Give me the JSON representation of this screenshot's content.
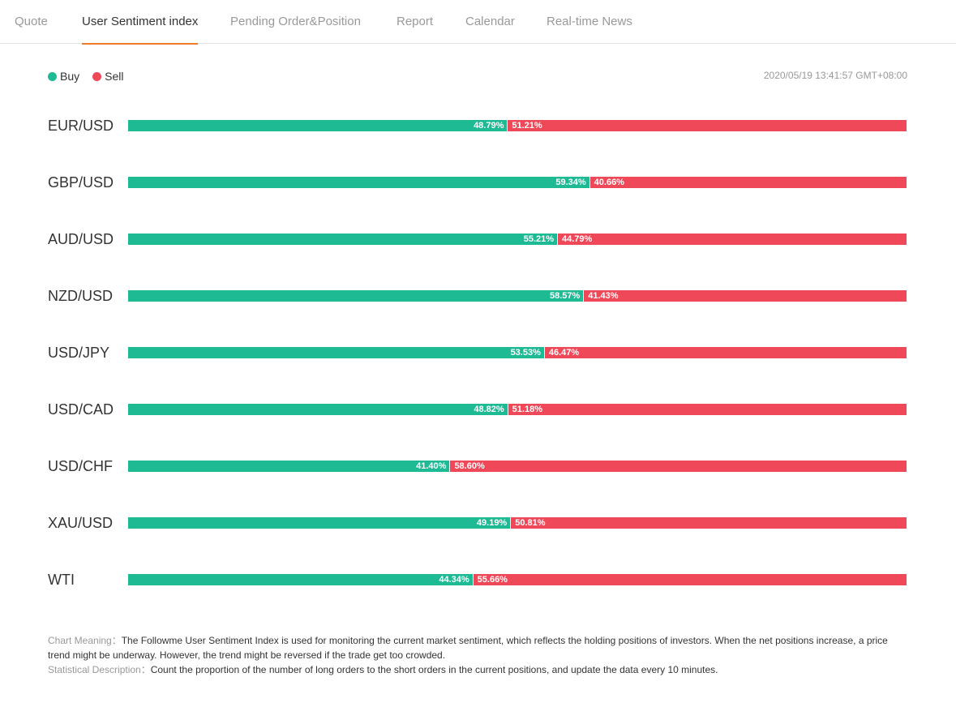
{
  "tabs": [
    {
      "label": "Quote",
      "active": false
    },
    {
      "label": "User Sentiment index",
      "active": true
    },
    {
      "label": "Pending Order&Position",
      "active": false
    },
    {
      "label": "Report",
      "active": false
    },
    {
      "label": "Calendar",
      "active": false
    },
    {
      "label": "Real-time News",
      "active": false
    }
  ],
  "colors": {
    "buy": "#1dba94",
    "sell": "#ef4858",
    "active_tab_underline": "#f07c2a"
  },
  "legend": {
    "buy_label": "Buy",
    "sell_label": "Sell"
  },
  "timestamp": "2020/05/19 13:41:57 GMT+08:00",
  "chart_data": {
    "type": "bar",
    "stacked": true,
    "categories": [
      "EUR/USD",
      "GBP/USD",
      "AUD/USD",
      "NZD/USD",
      "USD/JPY",
      "USD/CAD",
      "USD/CHF",
      "XAU/USD",
      "WTI"
    ],
    "series": [
      {
        "name": "Buy",
        "values": [
          48.79,
          59.34,
          55.21,
          58.57,
          53.53,
          48.82,
          41.4,
          49.19,
          44.34
        ]
      },
      {
        "name": "Sell",
        "values": [
          51.21,
          40.66,
          44.79,
          41.43,
          46.47,
          51.18,
          58.6,
          50.81,
          55.66
        ]
      }
    ],
    "labels": {
      "buy": [
        "48.79%",
        "59.34%",
        "55.21%",
        "58.57%",
        "53.53%",
        "48.82%",
        "41.40%",
        "49.19%",
        "44.34%"
      ],
      "sell": [
        "51.21%",
        "40.66%",
        "44.79%",
        "41.43%",
        "46.47%",
        "51.18%",
        "58.60%",
        "50.81%",
        "55.66%"
      ]
    }
  },
  "notes": {
    "meaning_label": "Chart Meaning：",
    "meaning_text": "The Followme User Sentiment Index is used for monitoring the current market sentiment, which reflects the holding positions of investors. When the net positions increase, a price trend might be underway. However, the trend might be reversed if the trade get too crowded.",
    "stat_label": "Statistical Description：",
    "stat_text": "Count the proportion of the number of long orders to the short orders in the current positions, and update the data every 10 minutes."
  }
}
